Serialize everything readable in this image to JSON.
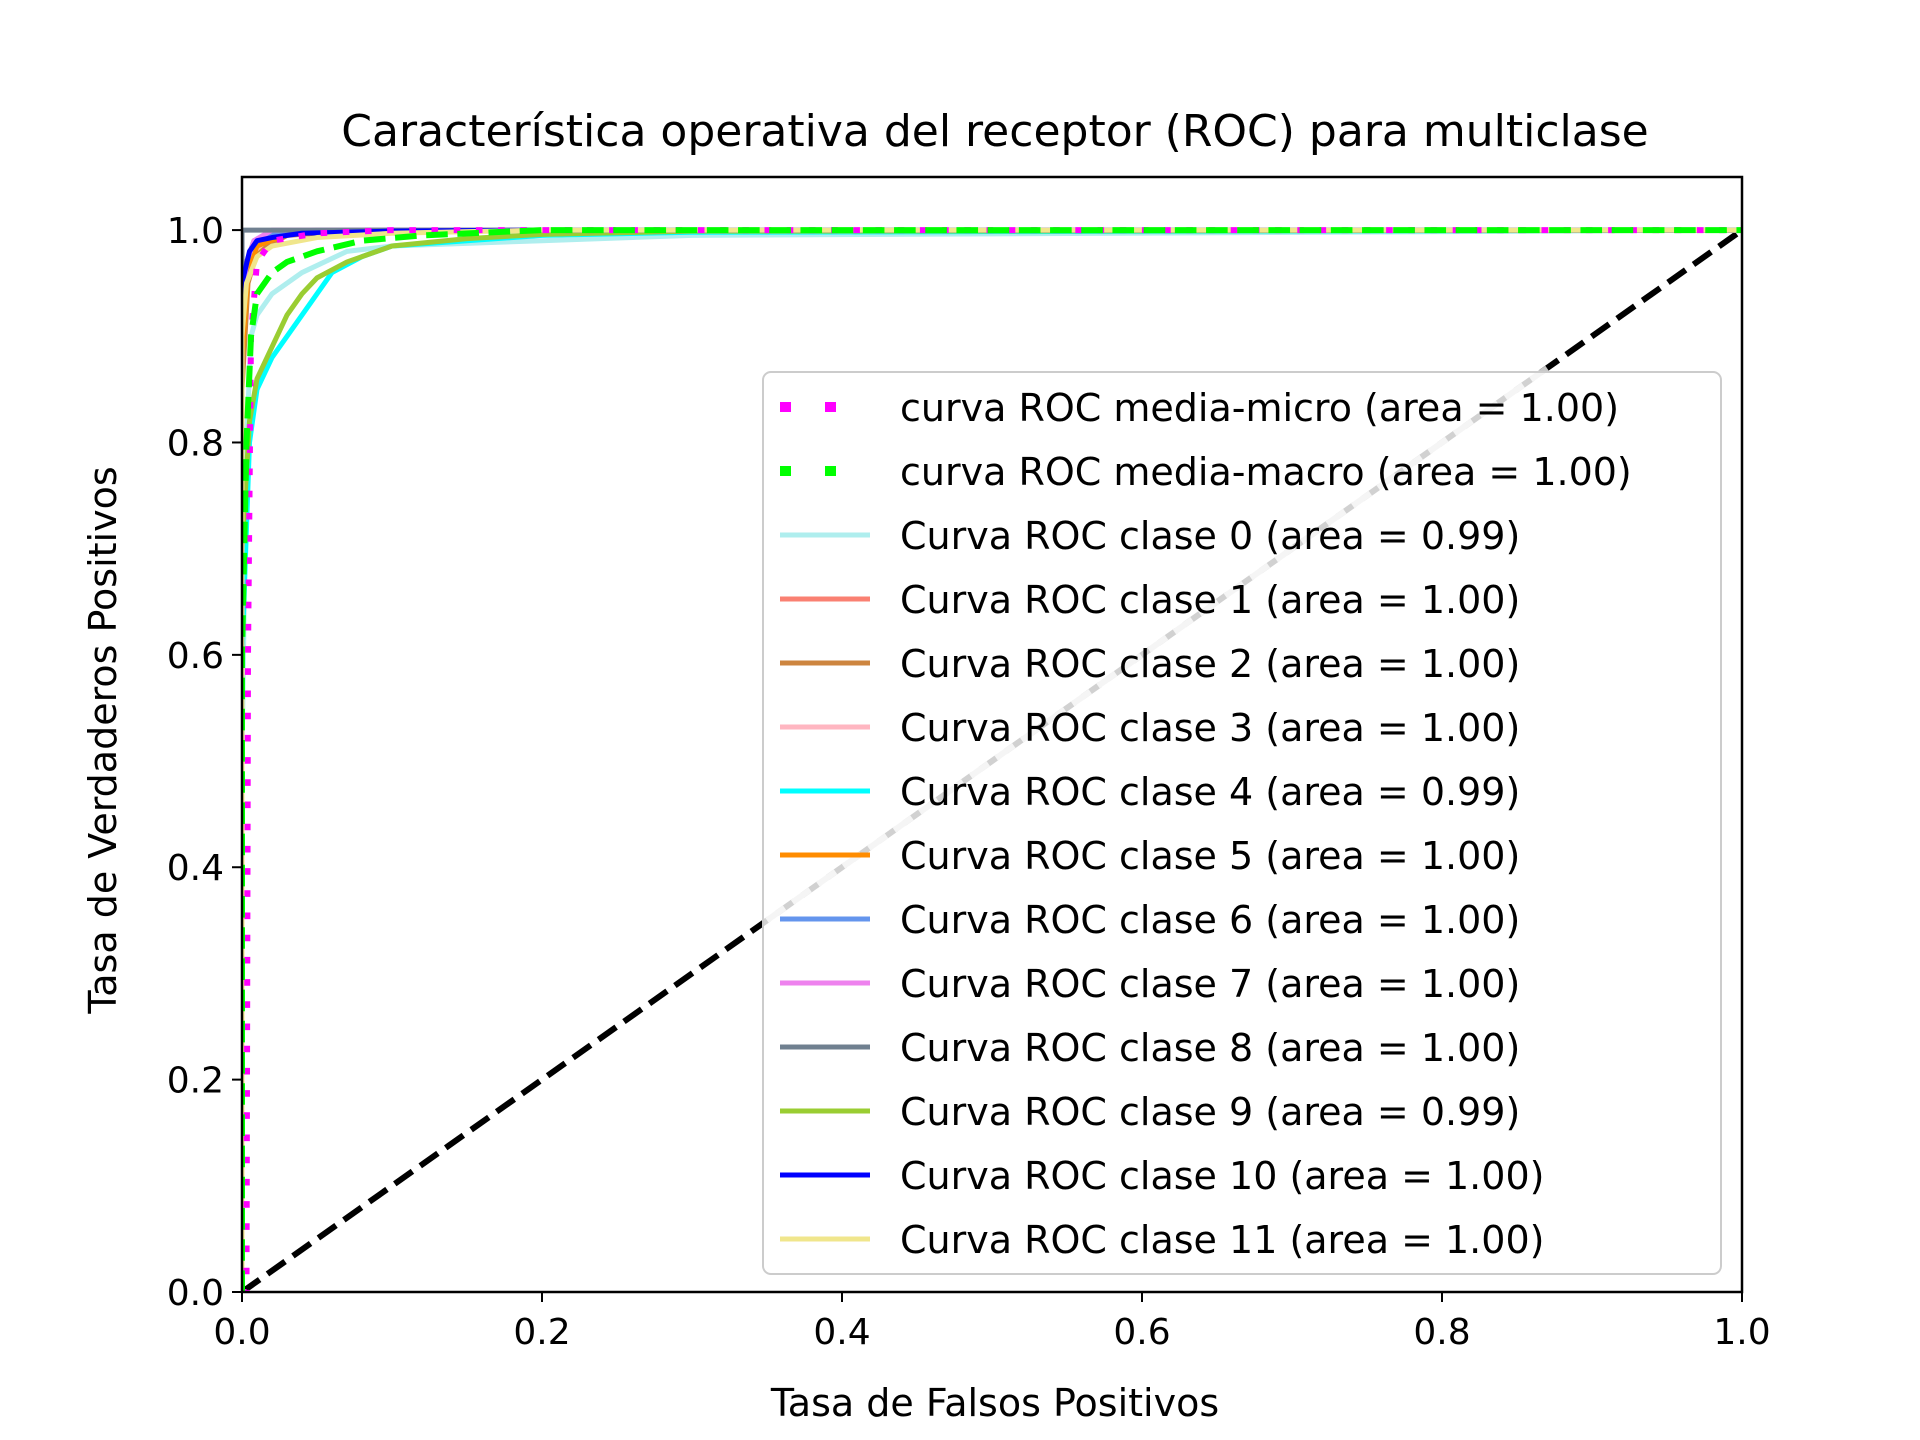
{
  "chart_data": {
    "type": "line",
    "title": "Característica operativa del receptor (ROC) para multiclase",
    "xlabel": "Tasa de Falsos Positivos",
    "ylabel": "Tasa de Verdaderos Positivos",
    "xlim": [
      0.0,
      1.0
    ],
    "ylim": [
      0.0,
      1.05
    ],
    "xticks": [
      "0.0",
      "0.2",
      "0.4",
      "0.6",
      "0.8",
      "1.0"
    ],
    "yticks": [
      "0.0",
      "0.2",
      "0.4",
      "0.6",
      "0.8",
      "1.0"
    ],
    "grid": false,
    "legend_position": "lower right",
    "series": [
      {
        "name": "curva ROC media-micro (area = 1.00)",
        "color": "#ff00ff",
        "style": "dotted",
        "x": [
          0,
          0.003,
          0.004,
          0.006,
          0.01,
          0.02,
          0.05,
          0.1,
          1.0
        ],
        "y": [
          0,
          0.0,
          0.6,
          0.9,
          0.97,
          0.99,
          0.997,
          1.0,
          1.0
        ]
      },
      {
        "name": "curva ROC media-macro (area = 1.00)",
        "color": "#00ff00",
        "style": "dashed",
        "x": [
          0,
          0.0,
          0.003,
          0.006,
          0.01,
          0.02,
          0.03,
          0.05,
          0.08,
          0.12,
          0.2,
          1.0
        ],
        "y": [
          0,
          0.6,
          0.8,
          0.9,
          0.94,
          0.96,
          0.97,
          0.98,
          0.99,
          0.995,
          1.0,
          1.0
        ]
      },
      {
        "name": "Curva ROC clase 0 (area = 0.99)",
        "color": "#afeeee",
        "style": "solid",
        "x": [
          0,
          0.0,
          0.003,
          0.006,
          0.01,
          0.02,
          0.04,
          0.07,
          0.1,
          0.2,
          0.3,
          1.0
        ],
        "y": [
          0,
          0.5,
          0.8,
          0.9,
          0.92,
          0.94,
          0.96,
          0.98,
          0.985,
          0.99,
          0.995,
          1.0
        ]
      },
      {
        "name": "Curva ROC clase 1 (area = 1.00)",
        "color": "#fa8072",
        "style": "solid",
        "x": [
          0,
          0.0,
          0.003,
          0.008,
          0.02,
          0.05,
          1.0
        ],
        "y": [
          0,
          0.9,
          0.97,
          0.99,
          0.997,
          1.0,
          1.0
        ]
      },
      {
        "name": "Curva ROC clase 2 (area = 1.00)",
        "color": "#cd853f",
        "style": "solid",
        "x": [
          0,
          0.0,
          0.004,
          0.01,
          0.03,
          0.08,
          1.0
        ],
        "y": [
          0,
          0.85,
          0.95,
          0.98,
          0.995,
          1.0,
          1.0
        ]
      },
      {
        "name": "Curva ROC clase 3 (area = 1.00)",
        "color": "#ffb6c1",
        "style": "solid",
        "x": [
          0,
          0.0,
          0.003,
          0.008,
          0.02,
          0.05,
          1.0
        ],
        "y": [
          0,
          0.9,
          0.96,
          0.98,
          0.995,
          1.0,
          1.0
        ]
      },
      {
        "name": "Curva ROC clase 4 (area = 0.99)",
        "color": "#00ffff",
        "style": "solid",
        "x": [
          0,
          0.0,
          0.005,
          0.01,
          0.02,
          0.03,
          0.045,
          0.06,
          0.08,
          0.1,
          0.15,
          0.2,
          0.3,
          1.0
        ],
        "y": [
          0,
          0.6,
          0.8,
          0.85,
          0.88,
          0.9,
          0.93,
          0.96,
          0.975,
          0.985,
          0.99,
          0.995,
          0.998,
          1.0
        ]
      },
      {
        "name": "Curva ROC clase 5 (area = 1.00)",
        "color": "#ff8c00",
        "style": "solid",
        "x": [
          0,
          0.0,
          0.004,
          0.01,
          0.03,
          0.08,
          1.0
        ],
        "y": [
          0,
          0.88,
          0.96,
          0.985,
          0.996,
          1.0,
          1.0
        ]
      },
      {
        "name": "Curva ROC clase 6 (area = 1.00)",
        "color": "#6495ed",
        "style": "solid",
        "x": [
          0,
          0.0,
          0.003,
          0.008,
          0.02,
          0.05,
          1.0
        ],
        "y": [
          0,
          0.92,
          0.97,
          0.99,
          0.997,
          1.0,
          1.0
        ]
      },
      {
        "name": "Curva ROC clase 7 (area = 1.00)",
        "color": "#ee82ee",
        "style": "solid",
        "x": [
          0,
          0.0,
          0.003,
          0.008,
          0.02,
          1.0
        ],
        "y": [
          0,
          0.93,
          0.97,
          0.99,
          1.0,
          1.0
        ]
      },
      {
        "name": "Curva ROC clase 8 (area = 1.00)",
        "color": "#708090",
        "style": "solid",
        "x": [
          0,
          0.0,
          1.0
        ],
        "y": [
          0,
          1.0,
          1.0
        ]
      },
      {
        "name": "Curva ROC clase 9 (area = 0.99)",
        "color": "#9acd32",
        "style": "solid",
        "x": [
          0,
          0.0,
          0.005,
          0.01,
          0.02,
          0.03,
          0.04,
          0.05,
          0.07,
          0.1,
          0.15,
          0.2,
          0.3,
          1.0
        ],
        "y": [
          0,
          0.7,
          0.82,
          0.86,
          0.89,
          0.92,
          0.94,
          0.955,
          0.97,
          0.985,
          0.992,
          0.996,
          0.999,
          1.0
        ]
      },
      {
        "name": "Curva ROC clase 10 (area = 1.00)",
        "color": "#0000ff",
        "style": "solid",
        "x": [
          0,
          0.0,
          0.005,
          0.01,
          0.02,
          0.04,
          0.1,
          0.2,
          1.0
        ],
        "y": [
          0,
          0.95,
          0.98,
          0.99,
          0.993,
          0.997,
          0.999,
          1.0,
          1.0
        ]
      },
      {
        "name": "Curva ROC clase 11 (area = 1.00)",
        "color": "#f0e68c",
        "style": "solid",
        "x": [
          0,
          0.0,
          0.003,
          0.01,
          0.02,
          0.05,
          0.1,
          0.2,
          1.0
        ],
        "y": [
          0,
          0.9,
          0.95,
          0.975,
          0.985,
          0.993,
          0.997,
          1.0,
          1.0
        ]
      }
    ],
    "reference_lines": [
      {
        "color": "#000000",
        "style": "dashed",
        "x": [
          0,
          1
        ],
        "y": [
          0,
          1
        ]
      },
      {
        "color": "#c8c8c8",
        "style": "dashed",
        "x": [
          0.35,
          0.87
        ],
        "y": [
          0.35,
          0.87
        ]
      }
    ]
  }
}
